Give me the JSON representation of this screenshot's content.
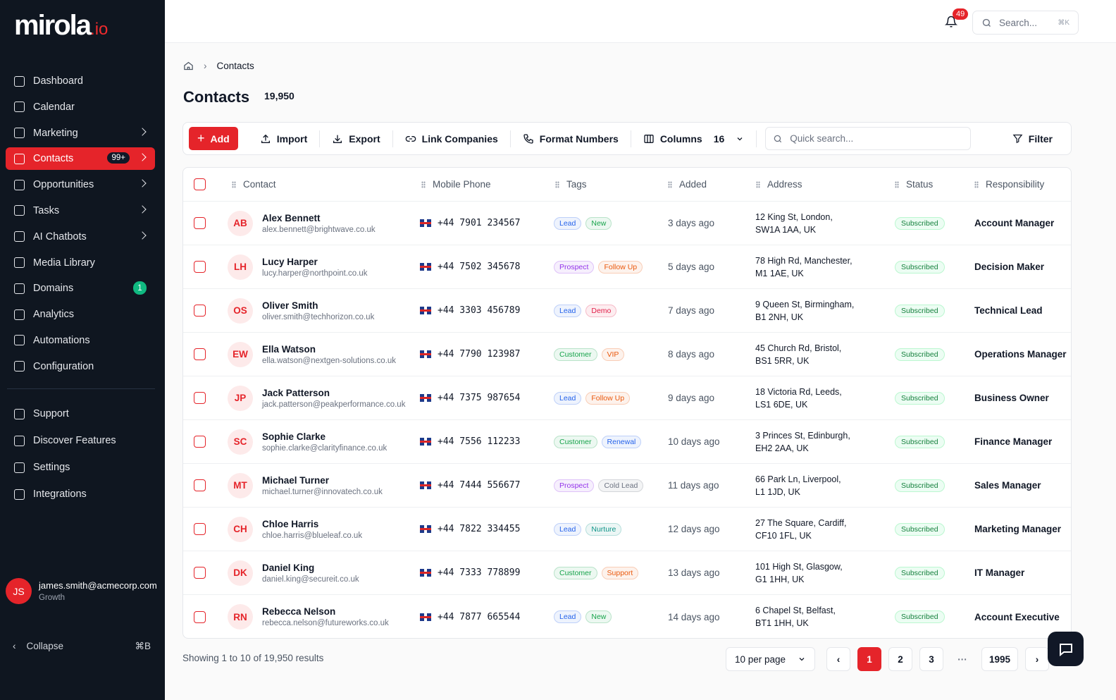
{
  "brand": {
    "name": "mirola",
    "suffix": ".io"
  },
  "nav": {
    "primary": [
      {
        "label": "Dashboard"
      },
      {
        "label": "Calendar"
      },
      {
        "label": "Marketing",
        "submenu": true
      },
      {
        "label": "Contacts",
        "badge": "99+",
        "active": true,
        "submenu": true
      },
      {
        "label": "Opportunities",
        "submenu": true
      },
      {
        "label": "Tasks",
        "submenu": true
      },
      {
        "label": "AI Chatbots",
        "submenu": true
      },
      {
        "label": "Media Library"
      },
      {
        "label": "Domains",
        "badge": "1",
        "badge_color": "#10b981"
      },
      {
        "label": "Analytics"
      },
      {
        "label": "Automations"
      },
      {
        "label": "Configuration"
      }
    ],
    "secondary": [
      {
        "label": "Support"
      },
      {
        "label": "Discover Features"
      },
      {
        "label": "Settings"
      },
      {
        "label": "Integrations"
      }
    ]
  },
  "user": {
    "initials": "JS",
    "email": "james.smith@acmecorp.com",
    "plan": "Growth"
  },
  "collapse": {
    "label": "Collapse",
    "shortcut": "⌘B"
  },
  "topbar": {
    "notifications": 49,
    "search_placeholder": "Search...",
    "search_shortcut": "⌘K"
  },
  "breadcrumb": [
    "Contacts"
  ],
  "page": {
    "title": "Contacts",
    "count": "19,950"
  },
  "toolbar": {
    "add": "Add",
    "import": "Import",
    "export": "Export",
    "link": "Link Companies",
    "format": "Format Numbers",
    "columns_label": "Columns",
    "columns_count": 16,
    "quick_search": "Quick search...",
    "filter": "Filter"
  },
  "table": {
    "columns": [
      "Contact",
      "Mobile Phone",
      "Tags",
      "Added",
      "Address",
      "Status",
      "Responsibility"
    ],
    "rows": [
      {
        "initials": "AB",
        "name": "Alex Bennett",
        "email": "alex.bennett@brightwave.co.uk",
        "phone": "+44 7901 234567",
        "tags": [
          {
            "label": "Lead",
            "color": "#2563eb"
          },
          {
            "label": "New",
            "color": "#16a34a"
          }
        ],
        "added": "3 days ago",
        "address": [
          "12 King St, London,",
          "SW1A 1AA, UK"
        ],
        "status": "Subscribed",
        "responsibility": "Account Manager"
      },
      {
        "initials": "LH",
        "name": "Lucy Harper",
        "email": "lucy.harper@northpoint.co.uk",
        "phone": "+44 7502 345678",
        "tags": [
          {
            "label": "Prospect",
            "color": "#9333ea"
          },
          {
            "label": "Follow Up",
            "color": "#ea580c"
          }
        ],
        "added": "5 days ago",
        "address": [
          "78 High Rd, Manchester,",
          "M1 1AE, UK"
        ],
        "status": "Subscribed",
        "responsibility": "Decision Maker"
      },
      {
        "initials": "OS",
        "name": "Oliver Smith",
        "email": "oliver.smith@techhorizon.co.uk",
        "phone": "+44 3303 456789",
        "tags": [
          {
            "label": "Lead",
            "color": "#2563eb"
          },
          {
            "label": "Demo",
            "color": "#e11d48"
          }
        ],
        "added": "7 days ago",
        "address": [
          "9 Queen St, Birmingham,",
          "B1 2NH, UK"
        ],
        "status": "Subscribed",
        "responsibility": "Technical Lead"
      },
      {
        "initials": "EW",
        "name": "Ella Watson",
        "email": "ella.watson@nextgen-solutions.co.uk",
        "phone": "+44 7790 123987",
        "tags": [
          {
            "label": "Customer",
            "color": "#16a34a"
          },
          {
            "label": "VIP",
            "color": "#ea580c"
          }
        ],
        "added": "8 days ago",
        "address": [
          "45 Church Rd, Bristol,",
          "BS1 5RR, UK"
        ],
        "status": "Subscribed",
        "responsibility": "Operations Manager"
      },
      {
        "initials": "JP",
        "name": "Jack Patterson",
        "email": "jack.patterson@peakperformance.co.uk",
        "phone": "+44 7375 987654",
        "tags": [
          {
            "label": "Lead",
            "color": "#2563eb"
          },
          {
            "label": "Follow Up",
            "color": "#ea580c"
          }
        ],
        "added": "9 days ago",
        "address": [
          "18 Victoria Rd, Leeds,",
          "LS1 6DE, UK"
        ],
        "status": "Subscribed",
        "responsibility": "Business Owner"
      },
      {
        "initials": "SC",
        "name": "Sophie Clarke",
        "email": "sophie.clarke@clarityfinance.co.uk",
        "phone": "+44 7556 112233",
        "tags": [
          {
            "label": "Customer",
            "color": "#16a34a"
          },
          {
            "label": "Renewal",
            "color": "#2563eb"
          }
        ],
        "added": "10 days ago",
        "address": [
          "3 Princes St, Edinburgh,",
          "EH2 2AA, UK"
        ],
        "status": "Subscribed",
        "responsibility": "Finance Manager"
      },
      {
        "initials": "MT",
        "name": "Michael Turner",
        "email": "michael.turner@innovatech.co.uk",
        "phone": "+44 7444 556677",
        "tags": [
          {
            "label": "Prospect",
            "color": "#9333ea"
          },
          {
            "label": "Cold Lead",
            "color": "#6b7280"
          }
        ],
        "added": "11 days ago",
        "address": [
          "66 Park Ln, Liverpool,",
          "L1 1JD, UK"
        ],
        "status": "Subscribed",
        "responsibility": "Sales Manager"
      },
      {
        "initials": "CH",
        "name": "Chloe Harris",
        "email": "chloe.harris@blueleaf.co.uk",
        "phone": "+44 7822 334455",
        "tags": [
          {
            "label": "Lead",
            "color": "#2563eb"
          },
          {
            "label": "Nurture",
            "color": "#0d9488"
          }
        ],
        "added": "12 days ago",
        "address": [
          "27 The Square, Cardiff,",
          "CF10 1FL, UK"
        ],
        "status": "Subscribed",
        "responsibility": "Marketing Manager"
      },
      {
        "initials": "DK",
        "name": "Daniel King",
        "email": "daniel.king@secureit.co.uk",
        "phone": "+44 7333 778899",
        "tags": [
          {
            "label": "Customer",
            "color": "#16a34a"
          },
          {
            "label": "Support",
            "color": "#ea580c"
          }
        ],
        "added": "13 days ago",
        "address": [
          "101 High St, Glasgow,",
          "G1 1HH, UK"
        ],
        "status": "Subscribed",
        "responsibility": "IT Manager"
      },
      {
        "initials": "RN",
        "name": "Rebecca Nelson",
        "email": "rebecca.nelson@futureworks.co.uk",
        "phone": "+44 7877 665544",
        "tags": [
          {
            "label": "Lead",
            "color": "#2563eb"
          },
          {
            "label": "New",
            "color": "#16a34a"
          }
        ],
        "added": "14 days ago",
        "address": [
          "6 Chapel St, Belfast,",
          "BT1 1HH, UK"
        ],
        "status": "Subscribed",
        "responsibility": "Account Executive"
      }
    ]
  },
  "footer": {
    "summary": "Showing 1 to 10 of 19,950 results",
    "per_page": "10 per page",
    "pages": [
      "1",
      "2",
      "3",
      "···",
      "1995"
    ],
    "current_page": 0
  }
}
